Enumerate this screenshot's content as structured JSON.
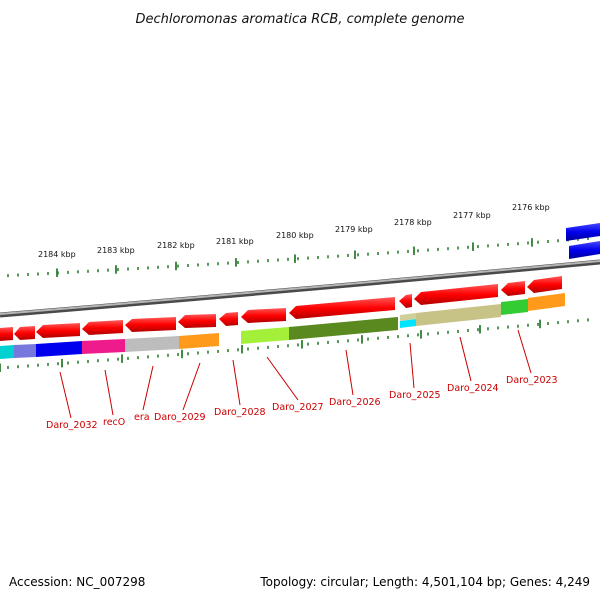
{
  "title": "Dechloromonas aromatica RCB, complete genome",
  "footer": {
    "accession": "Accession: NC_007298",
    "topology": "Topology: circular; Length: 4,501,104 bp; Genes: 4,249"
  },
  "ticks": [
    "2184 kbp",
    "2183 kbp",
    "2182 kbp",
    "2181 kbp",
    "2180 kbp",
    "2179 kbp",
    "2178 kbp",
    "2177 kbp",
    "2176 kbp"
  ],
  "genes": [
    "Daro_2032",
    "recO",
    "era",
    "Daro_2029",
    "Daro_2028",
    "Daro_2027",
    "Daro_2026",
    "Daro_2025",
    "Daro_2024",
    "Daro_2023"
  ],
  "colors": {
    "gene_arrow": "#ff0000",
    "backbone": "#888888",
    "tick": "#2e7d32",
    "label": "#cc0000",
    "blue_feature": "#0000ee"
  }
}
